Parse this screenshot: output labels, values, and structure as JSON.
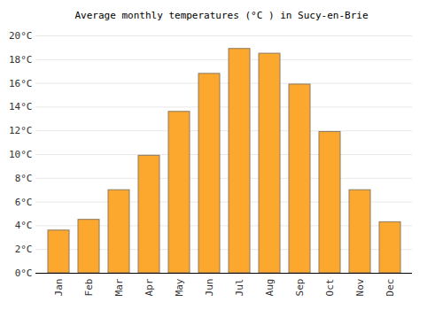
{
  "chart_data": {
    "type": "bar",
    "title": "Average monthly temperatures (°C ) in Sucy-en-Brie",
    "categories": [
      "Jan",
      "Feb",
      "Mar",
      "Apr",
      "May",
      "Jun",
      "Jul",
      "Aug",
      "Sep",
      "Oct",
      "Nov",
      "Dec"
    ],
    "values": [
      3.6,
      4.5,
      7.0,
      9.9,
      13.6,
      16.8,
      18.9,
      18.5,
      15.9,
      11.9,
      7.0,
      4.3
    ],
    "color": "#fca82f",
    "ylim": [
      0,
      20
    ],
    "yticks": [
      {
        "value": 0,
        "label": "0°C"
      },
      {
        "value": 2,
        "label": "2°C"
      },
      {
        "value": 4,
        "label": "4°C"
      },
      {
        "value": 6,
        "label": "6°C"
      },
      {
        "value": 8,
        "label": "8°C"
      },
      {
        "value": 10,
        "label": "10°C"
      },
      {
        "value": 12,
        "label": "12°C"
      },
      {
        "value": 14,
        "label": "14°C"
      },
      {
        "value": 16,
        "label": "16°C"
      },
      {
        "value": 18,
        "label": "18°C"
      },
      {
        "value": 20,
        "label": "20°C"
      }
    ],
    "grid": true
  }
}
